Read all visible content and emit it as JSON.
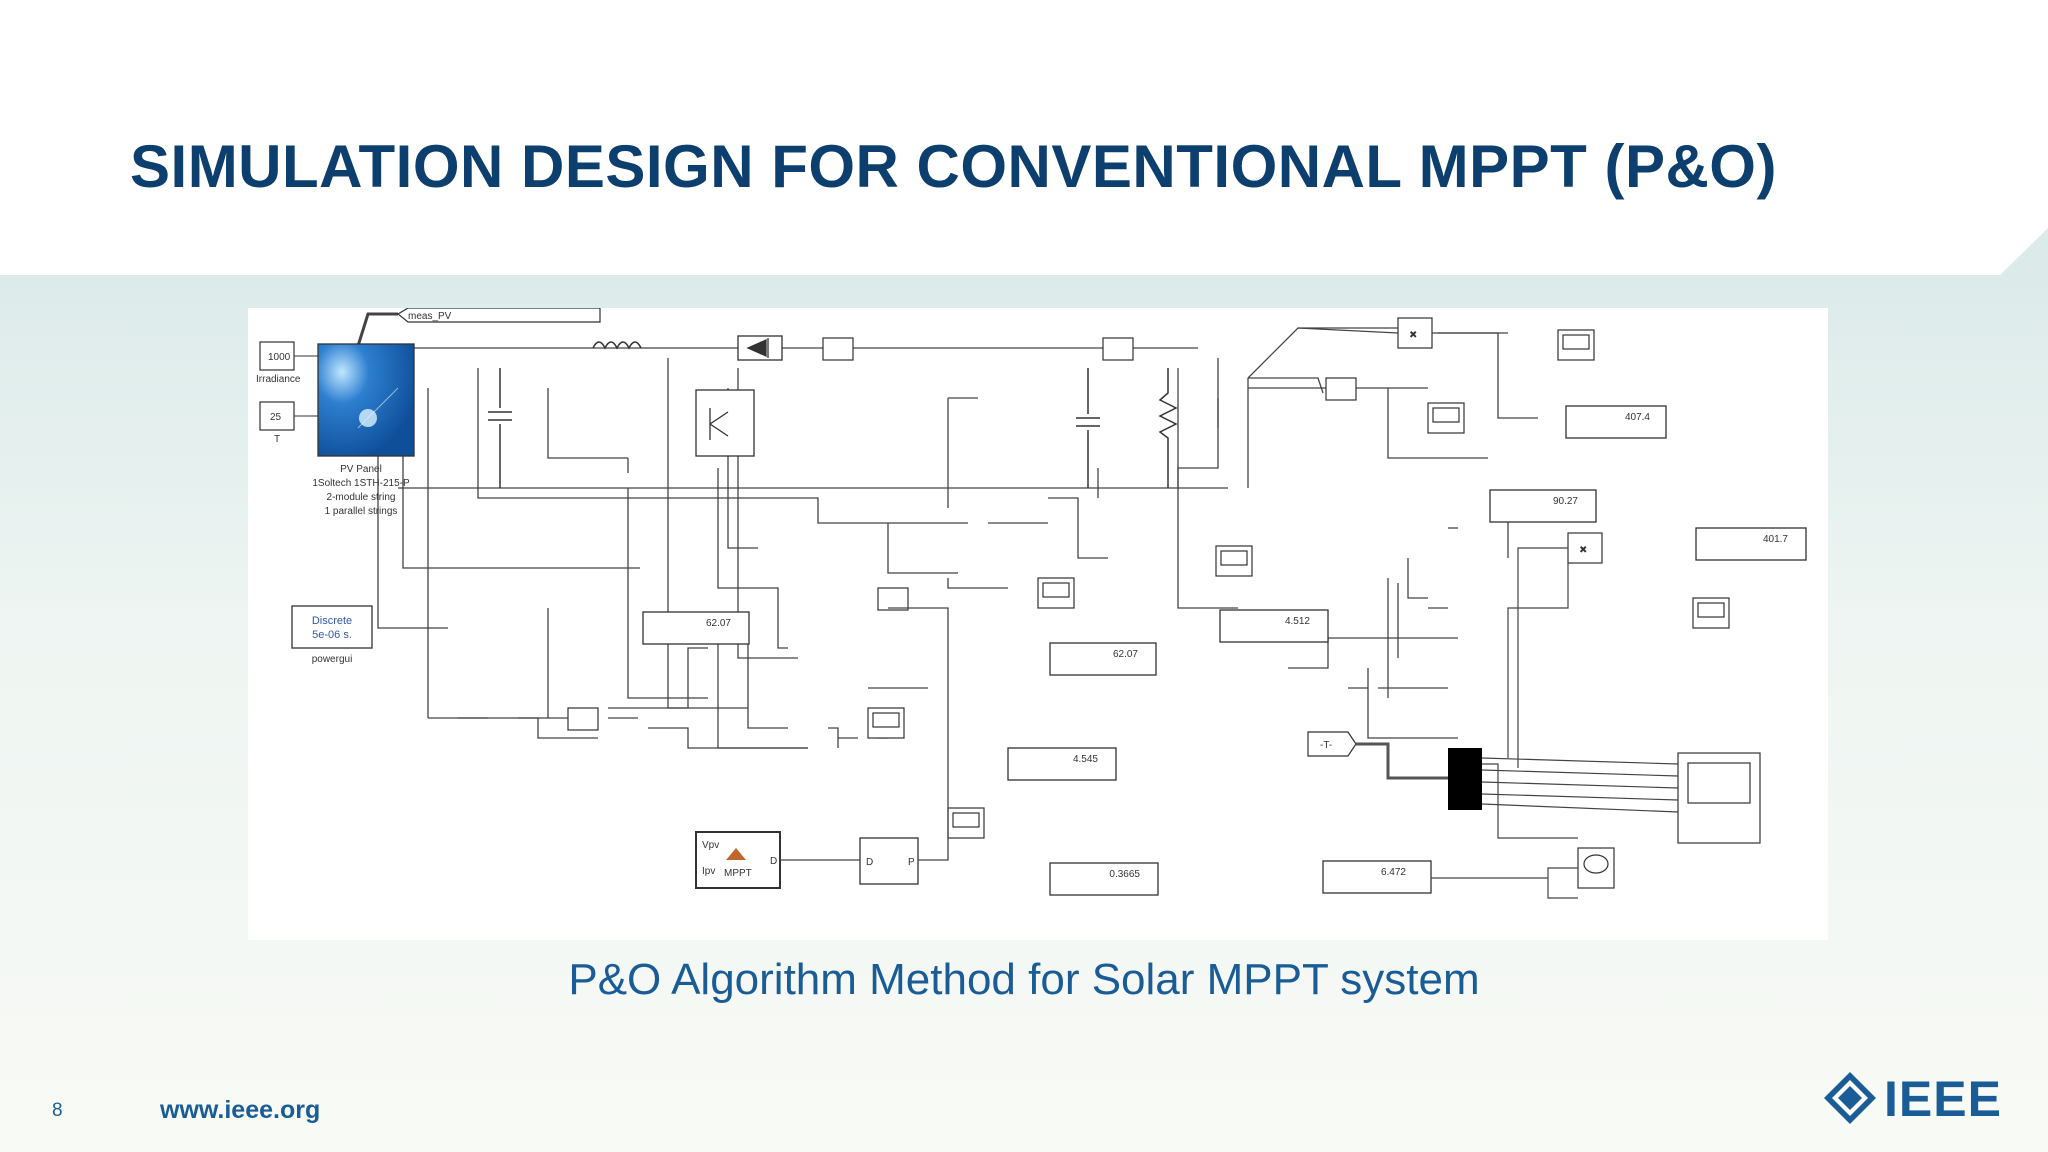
{
  "slide": {
    "title": "SIMULATION DESIGN FOR CONVENTIONAL MPPT (P&O)",
    "caption": "P&O Algorithm Method for Solar MPPT system",
    "page_number": "8",
    "website": "www.ieee.org",
    "logo_text": "IEEE",
    "colors": {
      "title": "#0c3e6e",
      "accent": "#1a5c96",
      "band": "#dcebea"
    }
  },
  "diagram": {
    "goto_tag": "meas_PV",
    "irradiance_value": "1000",
    "irradiance_label": "Irradiance",
    "temperature_value": "25",
    "temperature_label": "T",
    "pv_panel": {
      "name": "PV Panel",
      "line1": "1Soltech 1STH-215-P",
      "line2": "2-module string",
      "line3": "1 parallel strings"
    },
    "powergui": {
      "line1": "Discrete",
      "line2": "5e-06 s.",
      "label": "powergui"
    },
    "mppt_block": {
      "in1": "Vpv",
      "in2": "Ipv",
      "out": "D",
      "label": "MPPT"
    },
    "pwm_block": {
      "in": "D",
      "out": "P"
    },
    "from_tag": "-T-",
    "displays": [
      "407.4",
      "90.27",
      "401.7",
      "4.512",
      "62.07",
      "62.07",
      "4.545",
      "0.3665",
      "6.472"
    ],
    "icons": [
      "pv-panel-icon",
      "inductor-icon",
      "diode-icon",
      "igbt-icon",
      "capacitor-icon",
      "resistor-icon",
      "scope-icon",
      "product-icon",
      "ieee-diamond-icon"
    ]
  }
}
